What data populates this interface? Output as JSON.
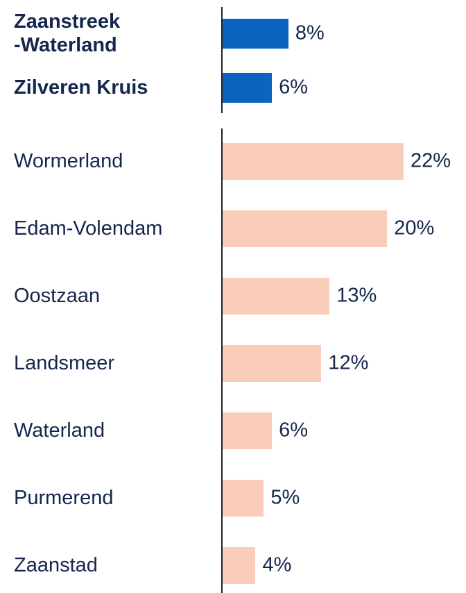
{
  "chart_data": [
    {
      "type": "bar",
      "categories": [
        "Zaanstreek\n-Waterland",
        "Zilveren Kruis"
      ],
      "values": [
        8,
        6
      ],
      "value_labels": [
        "8%",
        "6%"
      ],
      "color": "#0a64c0",
      "xlim": [
        0,
        22
      ]
    },
    {
      "type": "bar",
      "categories": [
        "Wormerland",
        "Edam-Volendam",
        "Oostzaan",
        "Landsmeer",
        "Waterland",
        "Purmerend",
        "Zaanstad"
      ],
      "values": [
        22,
        20,
        13,
        12,
        6,
        5,
        4
      ],
      "value_labels": [
        "22%",
        "20%",
        "13%",
        "12%",
        "6%",
        "5%",
        "4%"
      ],
      "color": "#f9cdb9",
      "xlim": [
        0,
        22
      ]
    }
  ]
}
